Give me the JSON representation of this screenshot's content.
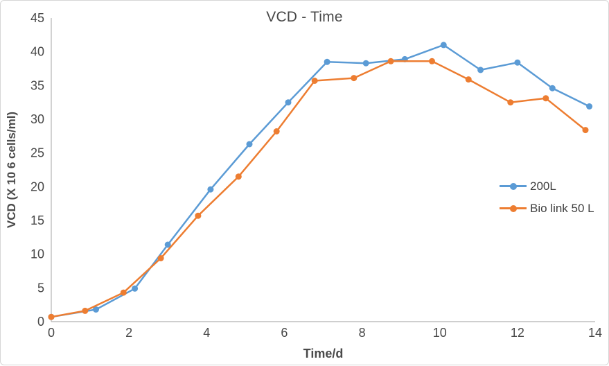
{
  "window": {
    "background": "#ffffff",
    "border_color": "#d6d6d6"
  },
  "chart_data": {
    "type": "line",
    "title": "VCD - Time",
    "xlabel": "Time/d",
    "ylabel": "VCD (X 10 6 cells/ml)",
    "xlim": [
      0,
      14
    ],
    "ylim": [
      0,
      45
    ],
    "x_ticks": [
      0,
      2,
      4,
      6,
      8,
      10,
      12,
      14
    ],
    "y_ticks": [
      0,
      5,
      10,
      15,
      20,
      25,
      30,
      35,
      40,
      45
    ],
    "grid": false,
    "legend_position": "center-right",
    "axis_color": "#bfbfbf",
    "text_color": "#474747",
    "series": [
      {
        "name": "200L",
        "color": "#5b9bd5",
        "marker": "circle",
        "points": [
          [
            0,
            0.7
          ],
          [
            1.15,
            1.8
          ],
          [
            2.15,
            4.9
          ],
          [
            3.0,
            11.4
          ],
          [
            4.1,
            19.6
          ],
          [
            5.1,
            26.3
          ],
          [
            6.1,
            32.5
          ],
          [
            7.1,
            38.5
          ],
          [
            8.1,
            38.3
          ],
          [
            9.1,
            38.9
          ],
          [
            10.1,
            41.0
          ],
          [
            11.05,
            37.3
          ],
          [
            12.0,
            38.4
          ],
          [
            12.9,
            34.6
          ],
          [
            13.85,
            31.9
          ]
        ]
      },
      {
        "name": "Bio link 50 L",
        "color": "#ed7d31",
        "marker": "circle",
        "points": [
          [
            0,
            0.7
          ],
          [
            0.87,
            1.6
          ],
          [
            1.86,
            4.3
          ],
          [
            2.82,
            9.4
          ],
          [
            3.78,
            15.7
          ],
          [
            4.82,
            21.5
          ],
          [
            5.8,
            28.2
          ],
          [
            6.78,
            35.7
          ],
          [
            7.79,
            36.1
          ],
          [
            8.74,
            38.6
          ],
          [
            9.8,
            38.6
          ],
          [
            10.74,
            35.9
          ],
          [
            11.82,
            32.5
          ],
          [
            12.73,
            33.1
          ],
          [
            13.75,
            28.4
          ]
        ]
      }
    ]
  }
}
